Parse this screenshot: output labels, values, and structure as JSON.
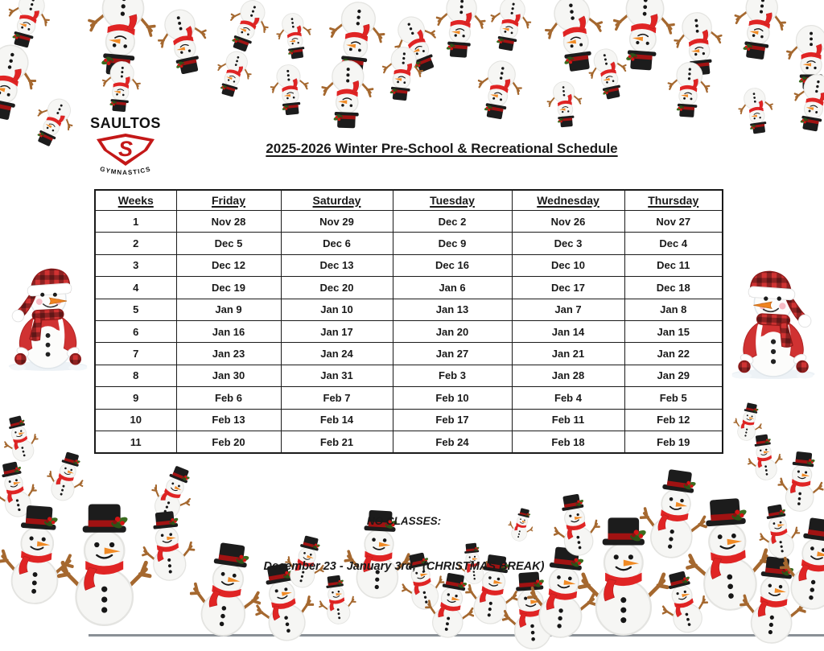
{
  "document": {
    "title": "2025-2026 Winter Pre-School & Recreational Schedule"
  },
  "logo": {
    "brand": "SAULTOS",
    "shield_letter": "S",
    "subbrand": "GYMNASTICS",
    "shield_color": "#c41818"
  },
  "schedule_table": {
    "columns": [
      "Weeks",
      "Friday",
      "Saturday",
      "Tuesday",
      "Wednesday",
      "Thursday"
    ],
    "rows": [
      [
        "1",
        "Nov 28",
        "Nov 29",
        "Dec 2",
        "Nov 26",
        "Nov 27"
      ],
      [
        "2",
        "Dec 5",
        "Dec 6",
        "Dec 9",
        "Dec 3",
        "Dec 4"
      ],
      [
        "3",
        "Dec 12",
        "Dec 13",
        "Dec 16",
        "Dec 10",
        "Dec 11"
      ],
      [
        "4",
        "Dec 19",
        "Dec 20",
        "Jan 6",
        "Dec 17",
        "Dec 18"
      ],
      [
        "5",
        "Jan 9",
        "Jan 10",
        "Jan 13",
        "Jan 7",
        "Jan 8"
      ],
      [
        "6",
        "Jan 16",
        "Jan 17",
        "Jan 20",
        "Jan 14",
        "Jan 15"
      ],
      [
        "7",
        "Jan 23",
        "Jan 24",
        "Jan 27",
        "Jan 21",
        "Jan 22"
      ],
      [
        "8",
        "Jan 30",
        "Jan 31",
        "Feb 3",
        "Jan 28",
        "Jan 29"
      ],
      [
        "9",
        "Feb 6",
        "Feb 7",
        "Feb 10",
        "Feb 4",
        "Feb 5"
      ],
      [
        "10",
        "Feb 13",
        "Feb 14",
        "Feb 17",
        "Feb 11",
        "Feb 12"
      ],
      [
        "11",
        "Feb 20",
        "Feb 21",
        "Feb 24",
        "Feb 18",
        "Feb 19"
      ]
    ]
  },
  "notice": {
    "heading": "NO CLASSES:",
    "detail": "December 23 - January 3rd,  (CHRISTMAS BREAK)"
  },
  "decorations": {
    "top_border_icon": "upside-down-snowman-icon",
    "bottom_border_icon": "top-hat-snowman-icon",
    "left_icon": "plaid-santa-snowman-icon",
    "right_icon": "plaid-santa-snowman-icon-mirrored",
    "colors": {
      "scarf_red": "#e02424",
      "hat_black": "#1c1c1c",
      "hat_band_red": "#a11212",
      "holly_green": "#3a6b1f",
      "berry_red": "#d41414",
      "nose_orange": "#f08a24",
      "twig_brown": "#a5682f",
      "plaid_red": "#d03232"
    }
  }
}
